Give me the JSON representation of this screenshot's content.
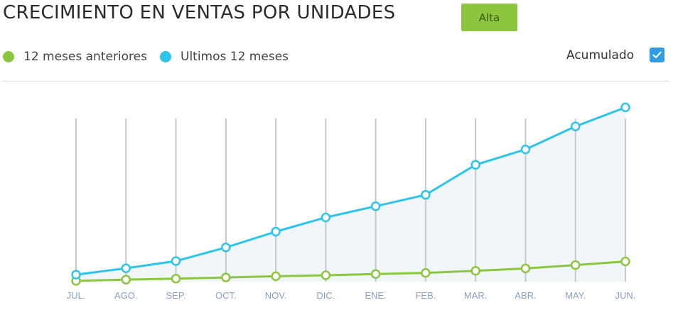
{
  "header": {
    "title": "CRECIMIENTO EN VENTAS POR UNIDADES",
    "badge": "Alta"
  },
  "legend": {
    "prev_label": "12 meses anteriores",
    "last_label": "Ultimos 12 meses"
  },
  "accumulate": {
    "label": "Acumulado",
    "checked": true
  },
  "colors": {
    "prev": "#8cc63f",
    "last": "#2ec4ea",
    "area": "#f1f6f8",
    "grid": "#c8c8c8"
  },
  "chart_data": {
    "type": "line",
    "categories": [
      "JUL.",
      "AGO.",
      "SEP.",
      "OCT.",
      "NOV.",
      "DIC.",
      "ENE.",
      "FEB.",
      "MAR.",
      "ABR.",
      "MAY.",
      "JUN."
    ],
    "series": [
      {
        "name": "12 meses anteriores",
        "values": [
          0.4,
          1.0,
          1.5,
          2.1,
          2.7,
          3.2,
          3.8,
          4.4,
          5.4,
          6.6,
          8.3,
          10.1
        ]
      },
      {
        "name": "Ultimos 12 meses",
        "values": [
          3.5,
          6.7,
          10.3,
          17.1,
          25.0,
          32.1,
          37.7,
          43.4,
          58.4,
          66.1,
          77.6,
          87.1
        ]
      }
    ],
    "ylim": [
      0,
      100
    ],
    "grid": true
  }
}
